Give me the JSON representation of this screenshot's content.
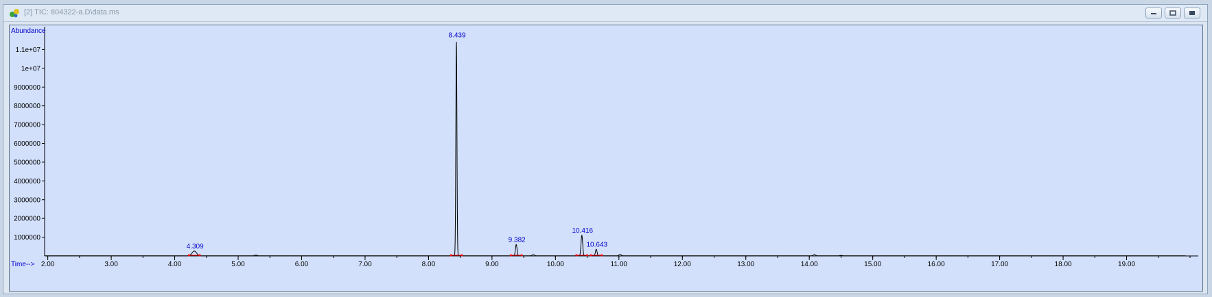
{
  "window": {
    "title": "[2] TIC: 804322-a.D\\data.ms",
    "controls": [
      "minimize",
      "restore",
      "close"
    ]
  },
  "chart_data": {
    "type": "line",
    "title": "TIC: 804322-a.D\\data.ms",
    "xlabel": "Time-->",
    "ylabel": "Abundance",
    "xlim": [
      1.95,
      20.0
    ],
    "ylim": [
      0,
      12000000
    ],
    "x_ticks": [
      2.0,
      3.0,
      4.0,
      5.0,
      6.0,
      7.0,
      8.0,
      9.0,
      10.0,
      11.0,
      12.0,
      13.0,
      14.0,
      15.0,
      16.0,
      17.0,
      18.0,
      19.0
    ],
    "x_tick_labels": [
      "2.00",
      "3.00",
      "4.00",
      "5.00",
      "6.00",
      "7.00",
      "8.00",
      "9.00",
      "10.00",
      "11.00",
      "12.00",
      "13.00",
      "14.00",
      "15.00",
      "16.00",
      "17.00",
      "18.00",
      "19.00"
    ],
    "y_ticks": [
      1000000,
      2000000,
      3000000,
      4000000,
      5000000,
      6000000,
      7000000,
      8000000,
      9000000,
      10000000,
      11000000
    ],
    "y_tick_labels": [
      "1000000",
      "2000000",
      "3000000",
      "4000000",
      "5000000",
      "6000000",
      "7000000",
      "8000000",
      "9000000",
      "1e+07",
      "1.1e+07"
    ],
    "peaks": [
      {
        "rt": 4.309,
        "label": "4.309",
        "abundance": 250000
      },
      {
        "rt": 8.439,
        "label": "8.439",
        "abundance": 11500000
      },
      {
        "rt": 9.382,
        "label": "9.382",
        "abundance": 600000
      },
      {
        "rt": 10.416,
        "label": "10.416",
        "abundance": 1100000
      },
      {
        "rt": 10.643,
        "label": "10.643",
        "abundance": 350000
      }
    ],
    "minor_peaks": [
      {
        "rt": 5.28,
        "abundance": 40000
      },
      {
        "rt": 9.65,
        "abundance": 60000
      },
      {
        "rt": 11.02,
        "abundance": 70000
      },
      {
        "rt": 14.08,
        "abundance": 60000
      },
      {
        "rt": 14.5,
        "abundance": 20000
      }
    ],
    "colors": {
      "background": "#d2e0fb",
      "trace": "#000000",
      "peak_label": "#0000cc",
      "axis_label": "#0000cc",
      "integration_mark": "#ff0000"
    }
  }
}
